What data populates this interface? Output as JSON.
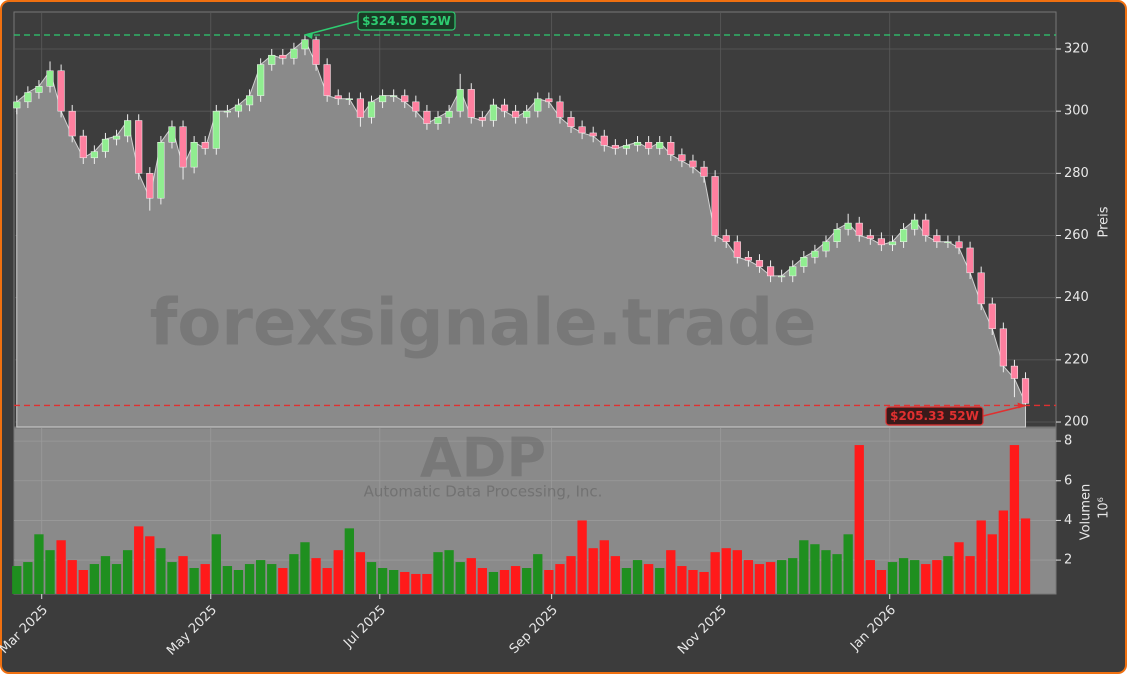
{
  "chart_data": {
    "type": "candlestick",
    "watermark": "forexsignale.trade",
    "symbol": "ADP",
    "company": "Automatic Data Processing, Inc.",
    "y_label": "Preis",
    "volume_label": "Volumen",
    "volume_offset_label": "10⁶",
    "x": [
      "2025-02-20",
      "2025-02-24",
      "2025-02-28",
      "2025-03-04",
      "2025-03-08",
      "2025-03-12",
      "2025-03-16",
      "2025-03-20",
      "2025-03-24",
      "2025-03-28",
      "2025-04-01",
      "2025-04-05",
      "2025-04-09",
      "2025-04-13",
      "2025-04-17",
      "2025-04-21",
      "2025-04-25",
      "2025-04-29",
      "2025-05-03",
      "2025-05-07",
      "2025-05-11",
      "2025-05-15",
      "2025-05-19",
      "2025-05-23",
      "2025-05-27",
      "2025-05-31",
      "2025-06-04",
      "2025-06-08",
      "2025-06-12",
      "2025-06-16",
      "2025-06-20",
      "2025-06-24",
      "2025-06-28",
      "2025-07-02",
      "2025-07-06",
      "2025-07-10",
      "2025-07-14",
      "2025-07-18",
      "2025-07-22",
      "2025-07-26",
      "2025-07-30",
      "2025-08-03",
      "2025-08-07",
      "2025-08-11",
      "2025-08-15",
      "2025-08-19",
      "2025-08-23",
      "2025-08-27",
      "2025-08-31",
      "2025-09-04",
      "2025-09-08",
      "2025-09-12",
      "2025-09-16",
      "2025-09-20",
      "2025-09-24",
      "2025-09-28",
      "2025-10-02",
      "2025-10-06",
      "2025-10-10",
      "2025-10-14",
      "2025-10-18",
      "2025-10-22",
      "2025-10-26",
      "2025-10-30",
      "2025-11-03",
      "2025-11-07",
      "2025-11-11",
      "2025-11-15",
      "2025-11-19",
      "2025-11-23",
      "2025-11-27",
      "2025-12-01",
      "2025-12-05",
      "2025-12-09",
      "2025-12-13",
      "2025-12-17",
      "2025-12-21",
      "2025-12-25",
      "2025-12-29",
      "2026-01-02",
      "2026-01-06",
      "2026-01-10",
      "2026-01-14",
      "2026-01-18",
      "2026-01-22",
      "2026-01-26",
      "2026-01-30",
      "2026-02-03",
      "2026-02-07",
      "2026-02-11",
      "2026-02-15",
      "2026-02-19"
    ],
    "open": [
      301,
      303,
      306,
      308,
      313,
      300,
      292,
      285,
      287,
      291,
      292,
      297,
      280,
      272,
      290,
      295,
      282,
      290,
      288,
      300,
      300,
      302,
      305,
      315,
      318,
      317,
      320,
      323,
      315,
      305,
      304,
      304,
      298,
      303,
      305,
      305,
      303,
      300,
      296,
      298,
      300,
      307,
      298,
      297,
      302,
      300,
      298,
      300,
      304,
      303,
      298,
      295,
      293,
      292,
      289,
      288,
      289,
      290,
      288,
      290,
      286,
      284,
      282,
      279,
      260,
      258,
      253,
      252,
      250,
      247,
      247,
      250,
      253,
      255,
      258,
      262,
      264,
      260,
      259,
      257,
      258,
      262,
      265,
      260,
      258,
      258,
      256,
      248,
      238,
      230,
      218,
      214
    ],
    "high": [
      305,
      308,
      310,
      316,
      315,
      302,
      294,
      289,
      293,
      294,
      299,
      299,
      282,
      292,
      297,
      297,
      292,
      292,
      302,
      302,
      304,
      307,
      317,
      320,
      320,
      322,
      324.5,
      324,
      317,
      307,
      306,
      306,
      305,
      307,
      307,
      307,
      305,
      302,
      300,
      302,
      312,
      309,
      300,
      304,
      304,
      302,
      302,
      306,
      306,
      305,
      300,
      297,
      295,
      294,
      291,
      291,
      292,
      292,
      292,
      292,
      288,
      286,
      284,
      281,
      262,
      260,
      255,
      254,
      252,
      249,
      252,
      255,
      257,
      260,
      264,
      267,
      266,
      262,
      261,
      260,
      264,
      267,
      267,
      262,
      260,
      260,
      258,
      250,
      240,
      232,
      220,
      216
    ],
    "low": [
      299,
      301,
      304,
      306,
      298,
      290,
      283,
      283,
      285,
      289,
      290,
      278,
      268,
      270,
      288,
      278,
      280,
      286,
      286,
      298,
      298,
      300,
      303,
      313,
      315,
      315,
      318,
      313,
      303,
      302,
      302,
      295,
      296,
      301,
      303,
      301,
      298,
      294,
      294,
      296,
      298,
      296,
      295,
      295,
      298,
      296,
      296,
      298,
      301,
      296,
      293,
      291,
      290,
      287,
      286,
      286,
      287,
      286,
      286,
      284,
      282,
      280,
      277,
      258,
      256,
      251,
      250,
      248,
      245,
      245,
      245,
      248,
      251,
      253,
      256,
      260,
      258,
      257,
      255,
      255,
      256,
      260,
      258,
      256,
      256,
      254,
      246,
      236,
      228,
      216,
      208,
      205.33
    ],
    "close": [
      303,
      306,
      308,
      313,
      300,
      292,
      285,
      287,
      291,
      292,
      297,
      280,
      272,
      290,
      295,
      282,
      290,
      288,
      300,
      300,
      302,
      305,
      315,
      318,
      317,
      320,
      323,
      315,
      305,
      304,
      304,
      298,
      303,
      305,
      305,
      303,
      300,
      296,
      298,
      300,
      307,
      298,
      297,
      302,
      300,
      298,
      300,
      304,
      303,
      298,
      295,
      293,
      292,
      289,
      288,
      289,
      290,
      288,
      290,
      286,
      284,
      282,
      279,
      260,
      258,
      253,
      252,
      250,
      247,
      247,
      250,
      253,
      255,
      258,
      262,
      264,
      260,
      259,
      257,
      258,
      262,
      265,
      260,
      258,
      258,
      256,
      248,
      238,
      230,
      218,
      214,
      206
    ],
    "volume": [
      1.7,
      1.9,
      3.3,
      2.5,
      3.0,
      2.0,
      1.5,
      1.8,
      2.2,
      1.8,
      2.5,
      3.7,
      3.2,
      2.6,
      1.9,
      2.2,
      1.6,
      1.8,
      3.3,
      1.7,
      1.5,
      1.8,
      2.0,
      1.8,
      1.6,
      2.3,
      2.9,
      2.1,
      1.6,
      2.5,
      3.6,
      2.4,
      1.9,
      1.6,
      1.5,
      1.4,
      1.3,
      1.3,
      2.4,
      2.5,
      1.9,
      2.1,
      1.6,
      1.4,
      1.5,
      1.7,
      1.6,
      2.3,
      1.5,
      1.8,
      2.2,
      4.0,
      2.6,
      3.0,
      2.2,
      1.6,
      2.0,
      1.8,
      1.6,
      2.5,
      1.7,
      1.5,
      1.4,
      2.4,
      2.6,
      2.5,
      2.0,
      1.8,
      1.9,
      2.0,
      2.1,
      3.0,
      2.8,
      2.5,
      2.3,
      3.3,
      7.8,
      2.0,
      1.5,
      1.9,
      2.1,
      2.0,
      1.8,
      2.0,
      2.2,
      2.9,
      2.2,
      4.0,
      3.3,
      4.5,
      7.8,
      4.1
    ],
    "up_color": "#90ee90",
    "down_color": "#ff7f9f",
    "volume_up_color": "#1f8f1f",
    "volume_down_color": "#ff1a1a",
    "area_color": "#8a8a8a",
    "grid": true,
    "xlim": [
      "2025-02-19",
      "2026-03-02"
    ],
    "xticks": [
      {
        "value": "2025-03-01",
        "label": "Mar 2025"
      },
      {
        "value": "2025-05-01",
        "label": "May 2025"
      },
      {
        "value": "2025-07-01",
        "label": "Jul 2025"
      },
      {
        "value": "2025-09-01",
        "label": "Sep 2025"
      },
      {
        "value": "2025-11-01",
        "label": "Nov 2025"
      },
      {
        "value": "2026-01-01",
        "label": "Jan 2026"
      }
    ],
    "ylim": [
      198.4,
      331.9
    ],
    "yticks": [
      200,
      220,
      240,
      260,
      280,
      300,
      320
    ],
    "volume_ylim": [
      0.29,
      8.66
    ],
    "volume_yticks": [
      2,
      4,
      6,
      8
    ],
    "annotations": [
      {
        "text": "$324.50 52W",
        "value": 324.5,
        "color": "#2ecc71"
      },
      {
        "text": "$205.33 52W",
        "value": 205.33,
        "color": "#e03030"
      }
    ]
  }
}
